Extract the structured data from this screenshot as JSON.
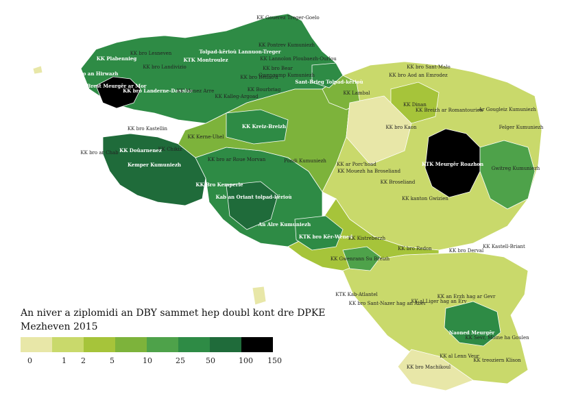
{
  "title": "An niver a ziplomidi an DBY sammet hep doubl kont dre DPKE",
  "subtitle": "Mezheven 2015",
  "legend": {
    "colors": [
      "#e8e7a8",
      "#c9d96b",
      "#a6c43a",
      "#7db33b",
      "#4ea24a",
      "#2e8b45",
      "#1f6b3a",
      "#000000"
    ],
    "ticks": [
      "0",
      "1",
      "2",
      "5",
      "10",
      "25",
      "50",
      "100",
      "150"
    ]
  },
  "regions": [
    {
      "label": "KK Gouerez Treger-Goelo",
      "color": "#a6c43a"
    },
    {
      "label": "KK Pontrev Kumuniezh",
      "color": "#c9d96b"
    },
    {
      "label": "Tolpad-kêrioù Lannuon-Treger",
      "color": "#1f6b3a"
    },
    {
      "label": "KK Lannolon Ploubaezh-Ourlou",
      "color": "#a6c43a"
    },
    {
      "label": "KK bro Bear",
      "color": "#a6c43a"
    },
    {
      "label": "KK Plabennieg",
      "color": "#2e8b45"
    },
    {
      "label": "KK bro an Hirwazh",
      "color": "#2e8b45"
    },
    {
      "label": "KK bro Lesneven",
      "color": "#4ea24a"
    },
    {
      "label": "KK bro Landivizio",
      "color": "#4ea24a"
    },
    {
      "label": "KTK Montroulez",
      "color": "#2e8b45"
    },
    {
      "label": "Brest Meurgêr ar Mor",
      "color": "#000000"
    },
    {
      "label": "KK bro Landerne-Daoulaz",
      "color": "#1f6b3a"
    },
    {
      "label": "KK Menez Arre",
      "color": "#4ea24a"
    },
    {
      "label": "KK Kalleg-Argoad",
      "color": "#4ea24a"
    },
    {
      "label": "KK Bourbriag",
      "color": "#7db33b"
    },
    {
      "label": "Gwengamp Kumuniezh",
      "color": "#4ea24a"
    },
    {
      "label": "KK bro Benac'h",
      "color": "#7db33b"
    },
    {
      "label": "Sant-Brieg Tolpad-kêrioù",
      "color": "#2e8b45"
    },
    {
      "label": "KK Lambal",
      "color": "#7db33b"
    },
    {
      "label": "KK bro Aod an Emrodez",
      "color": "#e8e7a8"
    },
    {
      "label": "KK bro Sant-Malo",
      "color": "#c9d96b"
    },
    {
      "label": "KK Dinan",
      "color": "#a6c43a"
    },
    {
      "label": "KK Breizh ar Romantourien",
      "color": "#a6c43a"
    },
    {
      "label": "Ar Gougleiz Kumuniezh",
      "color": "#c9d96b"
    },
    {
      "label": "Felger Kumuniezh",
      "color": "#c9d96b"
    },
    {
      "label": "KK Kreiz-Breizh",
      "color": "#2e8b45"
    },
    {
      "label": "KK Kerne-Uhel",
      "color": "#4ea24a"
    },
    {
      "label": "KK bro Kastellin",
      "color": "#4ea24a"
    },
    {
      "label": "KK Chikiz",
      "color": "#a6c43a"
    },
    {
      "label": "KK bro ar Roue Morvan",
      "color": "#7db33b"
    },
    {
      "label": "Pondi Kumuniezh",
      "color": "#4ea24a"
    },
    {
      "label": "KK ar Porc'hoad",
      "color": "#c9d96b"
    },
    {
      "label": "KK Mouezh ha Broseliand",
      "color": "#a6c43a"
    },
    {
      "label": "KTK Meurgêr Roazhon",
      "color": "#000000"
    },
    {
      "label": "Gwitreg Kumuniezh",
      "color": "#4ea24a"
    },
    {
      "label": "KK bro Kaon",
      "color": "#e8e7a8"
    },
    {
      "label": "KK Doûarnenez",
      "color": "#2e8b45"
    },
    {
      "label": "KK bro ar Chab",
      "color": "#4ea24a"
    },
    {
      "label": "Kemper Kumuniezh",
      "color": "#1f6b3a"
    },
    {
      "label": "KK Bro Kemperle",
      "color": "#2e8b45"
    },
    {
      "label": "Kab an Oriant tolpad-kêrioù",
      "color": "#1f6b3a"
    },
    {
      "label": "An Alre Kumuniezh",
      "color": "#2e8b45"
    },
    {
      "label": "KTK bro Kêr-Wened",
      "color": "#2e8b45"
    },
    {
      "label": "KK Broseliand",
      "color": "#a6c43a"
    },
    {
      "label": "KK kanton Gwizien",
      "color": "#c9d96b"
    },
    {
      "label": "KK Kistreberzh",
      "color": "#a6c43a"
    },
    {
      "label": "KK bro Redon",
      "color": "#a6c43a"
    },
    {
      "label": "KK bro Derval",
      "color": "#c9d96b"
    },
    {
      "label": "KK Kastell-Briant",
      "color": "#c9d96b"
    },
    {
      "label": "KK Gwenrann Su Breizh",
      "color": "#4ea24a"
    },
    {
      "label": "KTK Kab-Atlantel",
      "color": "#e8e7a8"
    },
    {
      "label": "KK bro Sant-Nazer hag an Aber",
      "color": "#c9d96b"
    },
    {
      "label": "KK al Liger hag an Erv",
      "color": "#c9d96b"
    },
    {
      "label": "KK an Erzh hag ar Gevr",
      "color": "#c9d96b"
    },
    {
      "label": "Naoned Meurgêr",
      "color": "#2e8b45"
    },
    {
      "label": "KK Sevr, Moine ha Goulen",
      "color": "#c9d96b"
    },
    {
      "label": "KK bro Machikoul",
      "color": "#e8e7a8"
    },
    {
      "label": "KK al Lenn Veur",
      "color": "#c9d96b"
    },
    {
      "label": "KK treoziern Klison",
      "color": "#c9d96b"
    }
  ]
}
